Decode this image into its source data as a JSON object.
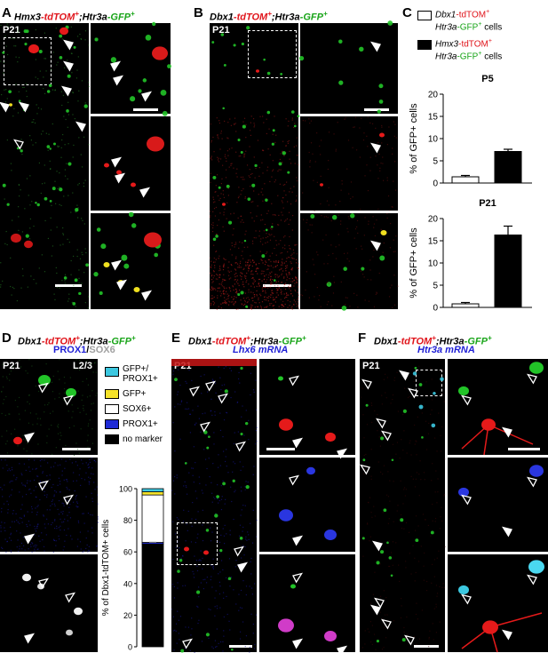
{
  "panels": {
    "A": {
      "letter": "A",
      "title_parts": [
        {
          "t": "Hmx3",
          "c": "k"
        },
        {
          "t": "-tdTOM",
          "c": "r"
        },
        {
          "t": "+",
          "c": "r"
        },
        {
          "t": ";",
          "c": "k"
        },
        {
          "t": "Htr3a",
          "c": "k"
        },
        {
          "t": "-GFP",
          "c": "g"
        },
        {
          "t": "+",
          "c": "g"
        }
      ],
      "age": "P21"
    },
    "B": {
      "letter": "B",
      "title_parts": [
        {
          "t": "Dbx1",
          "c": "k"
        },
        {
          "t": "-tdTOM",
          "c": "r"
        },
        {
          "t": "+",
          "c": "r"
        },
        {
          "t": ";",
          "c": "k"
        },
        {
          "t": "Htr3a",
          "c": "k"
        },
        {
          "t": "-GFP",
          "c": "g"
        },
        {
          "t": "+",
          "c": "g"
        }
      ],
      "age": "P21"
    },
    "C": {
      "letter": "C"
    },
    "D": {
      "letter": "D",
      "title_parts": [
        {
          "t": "Dbx1",
          "c": "k"
        },
        {
          "t": "-tdTOM",
          "c": "r"
        },
        {
          "t": "+",
          "c": "r"
        },
        {
          "t": ";",
          "c": "k"
        },
        {
          "t": "Htr3a",
          "c": "k"
        },
        {
          "t": "-GFP",
          "c": "g"
        },
        {
          "t": "+",
          "c": "g"
        }
      ],
      "sub_parts": [
        {
          "t": "PROX1",
          "c": "b"
        },
        {
          "t": "/",
          "c": "k"
        },
        {
          "t": "SOX6",
          "c": "w"
        }
      ],
      "age": "P21",
      "layer": "L2/3"
    },
    "E": {
      "letter": "E",
      "title_parts": [
        {
          "t": "Dbx1",
          "c": "k"
        },
        {
          "t": "-tdTOM",
          "c": "r"
        },
        {
          "t": "+",
          "c": "r"
        },
        {
          "t": ";",
          "c": "k"
        },
        {
          "t": "Htr3a",
          "c": "k"
        },
        {
          "t": "-GFP",
          "c": "g"
        },
        {
          "t": "+",
          "c": "g"
        }
      ],
      "sub_parts": [
        {
          "t": "Lhx6",
          "c": "b"
        },
        {
          "t": " mRNA",
          "c": "b"
        }
      ],
      "age": "P21"
    },
    "F": {
      "letter": "F",
      "title_parts": [
        {
          "t": "Dbx1",
          "c": "k"
        },
        {
          "t": "-tdTOM",
          "c": "r"
        },
        {
          "t": "+",
          "c": "r"
        },
        {
          "t": ";",
          "c": "k"
        },
        {
          "t": "Htr3a",
          "c": "k"
        },
        {
          "t": "-GFP",
          "c": "g"
        },
        {
          "t": "+",
          "c": "g"
        }
      ],
      "sub_parts": [
        {
          "t": "Htr3a",
          "c": "b"
        },
        {
          "t": " mRNA",
          "c": "b"
        }
      ],
      "age": "P21"
    }
  },
  "legend_C": {
    "items": [
      {
        "l1a": "Dbx1",
        "l1b": "-tdTOM",
        "l1c": "+",
        "l2a": "Htr3a",
        "l2b": "-GFP",
        "l2c": "+",
        "l2d": " cells",
        "fill": "#ffffff"
      },
      {
        "l1a": "Hmx3",
        "l1b": "-tdTOM",
        "l1c": "+",
        "l2a": "Htr3a",
        "l2b": "-GFP",
        "l2c": "+",
        "l2d": " cells",
        "fill": "#000000"
      }
    ]
  },
  "legend_D": {
    "items": [
      {
        "label": "GFP+/",
        "label2": "PROX1+",
        "color": "#3cc8e0"
      },
      {
        "label": "GFP+",
        "color": "#f5e22a"
      },
      {
        "label": "SOX6+",
        "color": "#ffffff"
      },
      {
        "label": "PROX1+",
        "color": "#1f2bd6"
      },
      {
        "label": "no marker",
        "color": "#000000"
      }
    ]
  },
  "chart_data": [
    {
      "type": "bar",
      "title": "P5",
      "categories": [
        "Dbx1-tdTOM+ Htr3a-GFP+ cells",
        "Hmx3-tdTOM+ Htr3a-GFP+ cells"
      ],
      "values": [
        1.4,
        7.1
      ],
      "errors": [
        0.3,
        0.5
      ],
      "ylabel": "% of GFP+ cells",
      "ylim": [
        0,
        20
      ],
      "yticks": [
        "0",
        "5",
        "10",
        "15",
        "20"
      ]
    },
    {
      "type": "bar",
      "title": "P21",
      "categories": [
        "Dbx1-tdTOM+ Htr3a-GFP+ cells",
        "Hmx3-tdTOM+ Htr3a-GFP+ cells"
      ],
      "values": [
        0.8,
        16.3
      ],
      "errors": [
        0.3,
        2.0
      ],
      "ylabel": "% of GFP+ cells",
      "ylim": [
        0,
        20
      ],
      "yticks": [
        "0",
        "5",
        "10",
        "15",
        "20"
      ]
    },
    {
      "type": "bar",
      "stacked": true,
      "categories": [
        ""
      ],
      "series": [
        {
          "name": "no marker",
          "values": [
            65
          ]
        },
        {
          "name": "PROX1+",
          "values": [
            1
          ]
        },
        {
          "name": "SOX6+",
          "values": [
            30
          ]
        },
        {
          "name": "GFP+",
          "values": [
            2
          ]
        },
        {
          "name": "GFP+/PROX1+",
          "values": [
            2
          ]
        }
      ],
      "ylabel": "% of Dbx1-tdTOM+ cells",
      "ylim": [
        0,
        100
      ],
      "yticks": [
        "0",
        "20",
        "40",
        "60",
        "80",
        "100"
      ]
    }
  ]
}
